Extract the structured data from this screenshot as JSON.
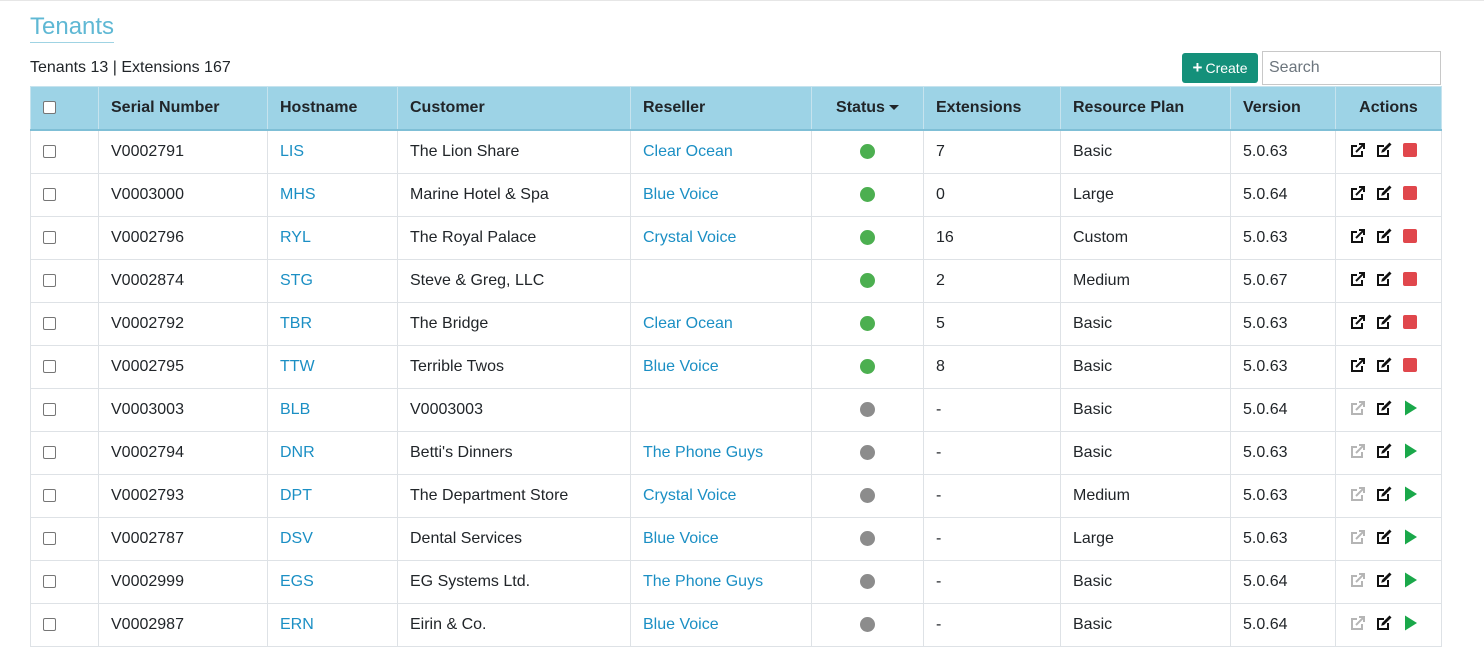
{
  "page": {
    "title": "Tenants",
    "summary": "Tenants 13 | Extensions 167"
  },
  "toolbar": {
    "create_label": "Create",
    "search_placeholder": "Search",
    "search_value": ""
  },
  "colors": {
    "accent": "#14907a",
    "header_bg": "#9dd3e6",
    "link": "#1b8fc4",
    "active": "#4caf50",
    "inactive": "#8c8c8c",
    "stop": "#e0474c",
    "start": "#1aa84a"
  },
  "table": {
    "headers": {
      "serial": "Serial Number",
      "hostname": "Hostname",
      "customer": "Customer",
      "reseller": "Reseller",
      "status": "Status",
      "extensions": "Extensions",
      "plan": "Resource Plan",
      "version": "Version",
      "actions": "Actions"
    },
    "rows": [
      {
        "serial": "V0002791",
        "hostname": "LIS",
        "customer": "The Lion Share",
        "reseller": "Clear Ocean",
        "status": "active",
        "extensions": "7",
        "plan": "Basic",
        "version": "5.0.63"
      },
      {
        "serial": "V0003000",
        "hostname": "MHS",
        "customer": "Marine Hotel & Spa",
        "reseller": "Blue Voice",
        "status": "active",
        "extensions": "0",
        "plan": "Large",
        "version": "5.0.64"
      },
      {
        "serial": "V0002796",
        "hostname": "RYL",
        "customer": "The Royal Palace",
        "reseller": "Crystal Voice",
        "status": "active",
        "extensions": "16",
        "plan": "Custom",
        "version": "5.0.63"
      },
      {
        "serial": "V0002874",
        "hostname": "STG",
        "customer": "Steve & Greg, LLC",
        "reseller": "",
        "status": "active",
        "extensions": "2",
        "plan": "Medium",
        "version": "5.0.67"
      },
      {
        "serial": "V0002792",
        "hostname": "TBR",
        "customer": "The Bridge",
        "reseller": "Clear Ocean",
        "status": "active",
        "extensions": "5",
        "plan": "Basic",
        "version": "5.0.63"
      },
      {
        "serial": "V0002795",
        "hostname": "TTW",
        "customer": "Terrible Twos",
        "reseller": "Blue Voice",
        "status": "active",
        "extensions": "8",
        "plan": "Basic",
        "version": "5.0.63"
      },
      {
        "serial": "V0003003",
        "hostname": "BLB",
        "customer": "V0003003",
        "reseller": "",
        "status": "inactive",
        "extensions": "-",
        "plan": "Basic",
        "version": "5.0.64"
      },
      {
        "serial": "V0002794",
        "hostname": "DNR",
        "customer": "Betti's Dinners",
        "reseller": "The Phone Guys",
        "status": "inactive",
        "extensions": "-",
        "plan": "Basic",
        "version": "5.0.63"
      },
      {
        "serial": "V0002793",
        "hostname": "DPT",
        "customer": "The Department Store",
        "reseller": "Crystal Voice",
        "status": "inactive",
        "extensions": "-",
        "plan": "Medium",
        "version": "5.0.63"
      },
      {
        "serial": "V0002787",
        "hostname": "DSV",
        "customer": "Dental Services",
        "reseller": "Blue Voice",
        "status": "inactive",
        "extensions": "-",
        "plan": "Large",
        "version": "5.0.63"
      },
      {
        "serial": "V0002999",
        "hostname": "EGS",
        "customer": "EG Systems Ltd.",
        "reseller": "The Phone Guys",
        "status": "inactive",
        "extensions": "-",
        "plan": "Basic",
        "version": "5.0.64"
      },
      {
        "serial": "V0002987",
        "hostname": "ERN",
        "customer": "Eirin & Co.",
        "reseller": "Blue Voice",
        "status": "inactive",
        "extensions": "-",
        "plan": "Basic",
        "version": "5.0.64"
      }
    ]
  }
}
